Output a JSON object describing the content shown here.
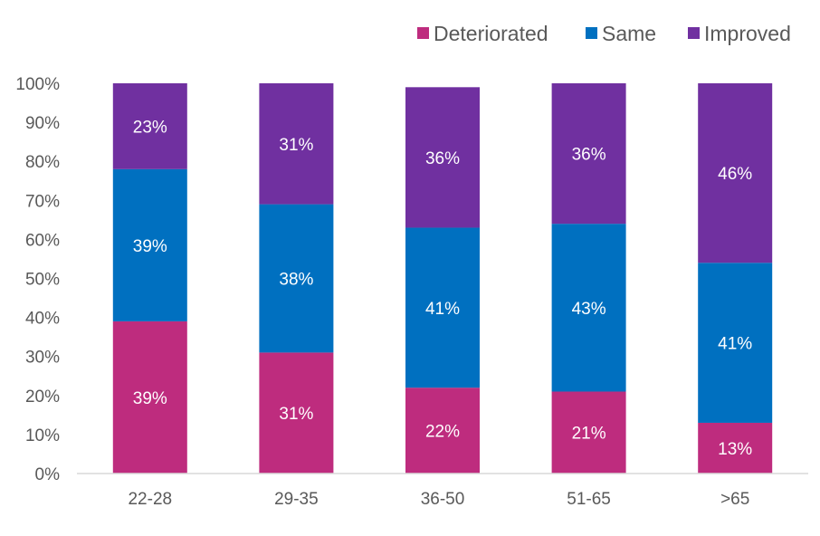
{
  "chart_data": {
    "type": "bar",
    "stacked": true,
    "percent_stacked": true,
    "categories": [
      "22-28",
      "29-35",
      "36-50",
      "51-65",
      ">65"
    ],
    "series": [
      {
        "name": "Deteriorated",
        "color": "#be2c7e",
        "values": [
          39,
          31,
          22,
          21,
          13
        ],
        "labels": [
          "39%",
          "31%",
          "22%",
          "21%",
          "13%"
        ]
      },
      {
        "name": "Same",
        "color": "#0070c0",
        "values": [
          39,
          38,
          41,
          43,
          41
        ],
        "labels": [
          "39%",
          "38%",
          "41%",
          "43%",
          "41%"
        ]
      },
      {
        "name": "Improved",
        "color": "#7030a0",
        "values": [
          23,
          31,
          36,
          36,
          46
        ],
        "labels": [
          "23%",
          "31%",
          "36%",
          "36%",
          "46%"
        ]
      }
    ],
    "ylim": [
      0,
      100
    ],
    "yticks": [
      "0%",
      "10%",
      "20%",
      "30%",
      "40%",
      "50%",
      "60%",
      "70%",
      "80%",
      "90%",
      "100%"
    ],
    "grid": false,
    "legend_position": "top-right"
  }
}
